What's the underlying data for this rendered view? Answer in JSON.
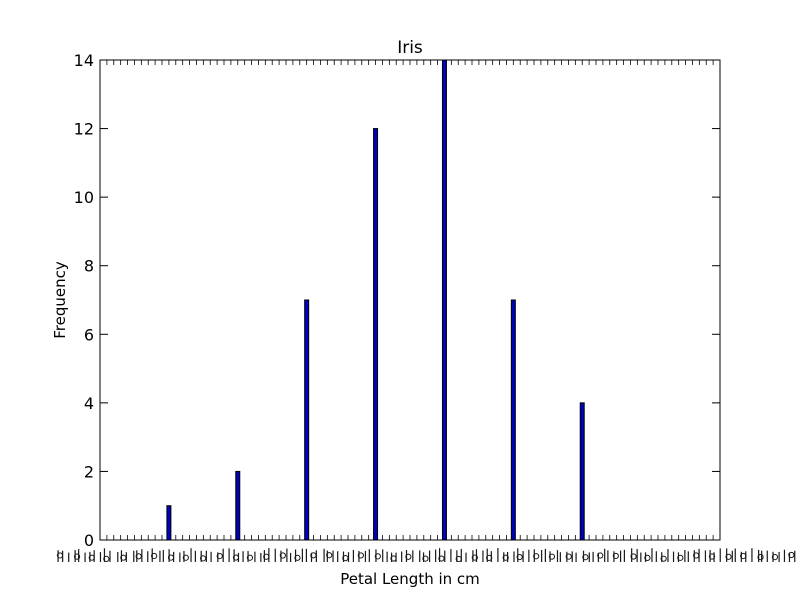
{
  "chart_data": {
    "type": "bar",
    "title": "Iris",
    "xlabel": "Petal Length in cm",
    "ylabel": "Frequency",
    "ylim": [
      0,
      14
    ],
    "yticks": [
      "0",
      "2",
      "4",
      "6",
      "8",
      "10",
      "12",
      "14"
    ],
    "bars": [
      {
        "x": 1,
        "value": 1
      },
      {
        "x": 2,
        "value": 2
      },
      {
        "x": 3,
        "value": 7
      },
      {
        "x": 4,
        "value": 12
      },
      {
        "x": 5,
        "value": 14
      },
      {
        "x": 6,
        "value": 7
      },
      {
        "x": 7,
        "value": 4
      }
    ],
    "xlim": [
      0,
      9
    ],
    "x_tick_labels": "overlapping, illegible",
    "grid": false,
    "bar_color": "#0000bf",
    "bar_edge_color": "#000000"
  }
}
